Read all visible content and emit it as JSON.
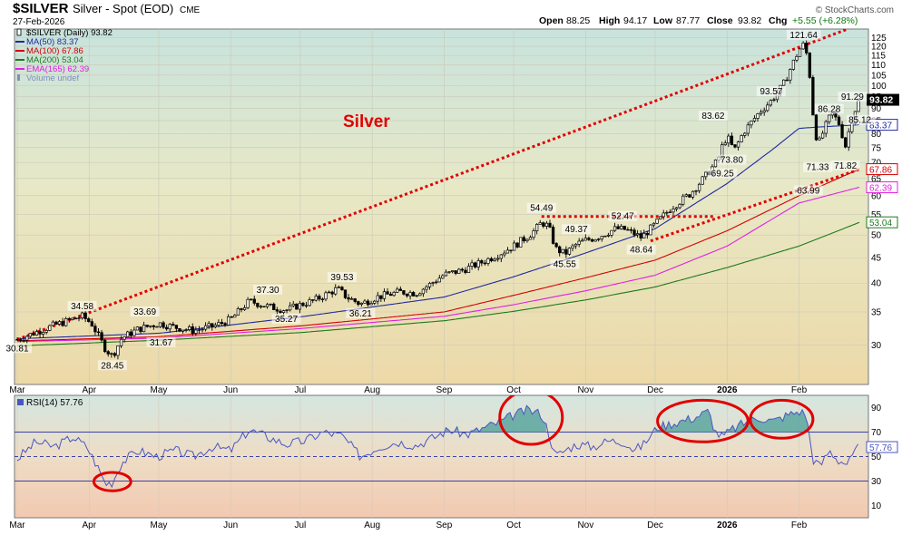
{
  "header": {
    "symbol": "$SILVER",
    "name": "Silver - Spot (EOD)",
    "exchange": "CME",
    "date": "27-Feb-2026",
    "brand": "© StockCharts.com",
    "ohlc": {
      "open_label": "Open",
      "open": "88.25",
      "high_label": "High",
      "high": "94.17",
      "low_label": "Low",
      "low": "87.77",
      "close_label": "Close",
      "close": "93.82",
      "chg_label": "Chg",
      "chg": "+5.55 (+6.28%)"
    }
  },
  "legend": [
    {
      "text": "$SILVER (Daily) 93.82",
      "color": "#000000",
      "marker": "bar"
    },
    {
      "text": "MA(50) 83.37",
      "color": "#1f2a9e",
      "marker": "line"
    },
    {
      "text": "MA(100) 67.86",
      "color": "#d10000",
      "marker": "line"
    },
    {
      "text": "MA(200) 53.04",
      "color": "#1e7a1e",
      "marker": "line"
    },
    {
      "text": "EMA(165) 62.39",
      "color": "#e020e0",
      "marker": "line"
    },
    {
      "text": "Volume undef",
      "color": "#7f8fbf",
      "marker": "vol"
    }
  ],
  "annotation": {
    "text": "Silver",
    "color": "#e00000"
  },
  "colors": {
    "candle": "#000000",
    "ma50": "#1f2a9e",
    "ma100": "#d10000",
    "ma200": "#1e7a1e",
    "ema165": "#e020e0",
    "trend": "#e00000",
    "rsi": "#4a55c0",
    "rsi_fill": "#5aa6a0",
    "circle": "#e00000",
    "label_box": "#ffffff"
  },
  "chart_data": [
    {
      "type": "candlestick",
      "title": "$SILVER Silver - Spot (EOD) CME",
      "x_labels": [
        "Mar",
        "Apr",
        "May",
        "Jun",
        "Jul",
        "Aug",
        "Sep",
        "Oct",
        "Nov",
        "Dec",
        "2026",
        "Feb"
      ],
      "y_scale": "log",
      "ylim": [
        25,
        130
      ],
      "y_ticks": [
        30,
        35,
        40,
        45,
        50,
        55,
        60,
        65,
        70,
        75,
        80,
        85,
        90,
        95,
        100,
        105,
        110,
        115,
        120,
        125
      ],
      "x_range_days": [
        0,
        363
      ],
      "month_days": [
        0,
        31,
        61,
        92,
        122,
        153,
        184,
        214,
        245,
        275,
        306,
        337
      ],
      "closes": [
        [
          0,
          30.8
        ],
        [
          15,
          32.8
        ],
        [
          28,
          34.3
        ],
        [
          32,
          33.2
        ],
        [
          38,
          29.5
        ],
        [
          41,
          28.5
        ],
        [
          45,
          31.0
        ],
        [
          52,
          32.3
        ],
        [
          61,
          33.2
        ],
        [
          68,
          32.6
        ],
        [
          76,
          32.1
        ],
        [
          85,
          32.8
        ],
        [
          92,
          33.8
        ],
        [
          100,
          36.8
        ],
        [
          108,
          35.9
        ],
        [
          116,
          35.3
        ],
        [
          122,
          36.2
        ],
        [
          128,
          36.9
        ],
        [
          138,
          39.0
        ],
        [
          142,
          37.5
        ],
        [
          148,
          36.3
        ],
        [
          155,
          37.5
        ],
        [
          165,
          38.4
        ],
        [
          172,
          38.2
        ],
        [
          178,
          39.8
        ],
        [
          184,
          41.6
        ],
        [
          192,
          42.5
        ],
        [
          200,
          44.0
        ],
        [
          207,
          45.6
        ],
        [
          214,
          47.5
        ],
        [
          222,
          50.5
        ],
        [
          226,
          53.0
        ],
        [
          229,
          52.1
        ],
        [
          232,
          47.0
        ],
        [
          236,
          45.8
        ],
        [
          241,
          47.9
        ],
        [
          245,
          48.8
        ],
        [
          250,
          49.5
        ],
        [
          258,
          51.5
        ],
        [
          262,
          51.3
        ],
        [
          266,
          50.3
        ],
        [
          269,
          49.4
        ],
        [
          275,
          52.6
        ],
        [
          282,
          56.8
        ],
        [
          290,
          60.5
        ],
        [
          297,
          66.0
        ],
        [
          302,
          70.8
        ],
        [
          304,
          75.8
        ],
        [
          306,
          79.0
        ],
        [
          309,
          73.9
        ],
        [
          313,
          80.5
        ],
        [
          320,
          88.5
        ],
        [
          325,
          93.2
        ],
        [
          330,
          100.0
        ],
        [
          334,
          110.0
        ],
        [
          337,
          118.0
        ],
        [
          339,
          121.0
        ],
        [
          341,
          113.0
        ],
        [
          343,
          88.0
        ],
        [
          345,
          75.5
        ],
        [
          348,
          82.0
        ],
        [
          351,
          88.0
        ],
        [
          354,
          84.5
        ],
        [
          357,
          75.6
        ],
        [
          359,
          83.0
        ],
        [
          361,
          89.0
        ],
        [
          363,
          93.8
        ]
      ],
      "series": [
        {
          "name": "MA(50)",
          "color": "#1f2a9e",
          "value_label": "83.37",
          "points": [
            [
              0,
              30.9
            ],
            [
              61,
              31.7
            ],
            [
              122,
              34.2
            ],
            [
              184,
              37.5
            ],
            [
              214,
              41.2
            ],
            [
              245,
              46.0
            ],
            [
              275,
              51.5
            ],
            [
              306,
              63.5
            ],
            [
              325,
              74.0
            ],
            [
              337,
              82.0
            ],
            [
              345,
              82.5
            ],
            [
              363,
              83.4
            ]
          ]
        },
        {
          "name": "MA(100)",
          "color": "#d10000",
          "value_label": "67.86",
          "points": [
            [
              0,
              30.6
            ],
            [
              61,
              31.2
            ],
            [
              122,
              32.8
            ],
            [
              184,
              35.0
            ],
            [
              214,
              37.8
            ],
            [
              245,
              41.0
            ],
            [
              275,
              44.5
            ],
            [
              306,
              51.0
            ],
            [
              337,
              60.0
            ],
            [
              363,
              67.9
            ]
          ]
        },
        {
          "name": "MA(200)",
          "color": "#1e7a1e",
          "value_label": "53.04",
          "points": [
            [
              0,
              29.9
            ],
            [
              61,
              30.7
            ],
            [
              122,
              31.8
            ],
            [
              184,
              33.6
            ],
            [
              214,
              35.1
            ],
            [
              245,
              37.0
            ],
            [
              275,
              39.3
            ],
            [
              306,
              43.0
            ],
            [
              337,
              47.5
            ],
            [
              363,
              53.0
            ]
          ]
        },
        {
          "name": "EMA(165)",
          "color": "#e020e0",
          "value_label": "62.39",
          "points": [
            [
              0,
              30.5
            ],
            [
              61,
              31.0
            ],
            [
              122,
              32.4
            ],
            [
              184,
              34.3
            ],
            [
              214,
              36.2
            ],
            [
              245,
              38.6
            ],
            [
              275,
              41.5
            ],
            [
              306,
              47.5
            ],
            [
              337,
              58.0
            ],
            [
              363,
              62.4
            ]
          ]
        }
      ],
      "trendlines": [
        {
          "name": "upper-channel",
          "from": [
            0,
            30.8
          ],
          "to": [
            358,
            130.0
          ]
        },
        {
          "name": "lower-channel",
          "from": [
            273,
            48.64
          ],
          "to": [
            363,
            67.8
          ]
        },
        {
          "name": "horizontal-resistance",
          "from": [
            226,
            54.49
          ],
          "to": [
            300,
            54.49
          ]
        }
      ],
      "last_value": {
        "value": 93.82,
        "label": "93.82"
      },
      "data_labels": [
        {
          "text": "30.81",
          "day": 0,
          "value": 30.81,
          "pos": "below"
        },
        {
          "text": "34.58",
          "day": 28,
          "value": 34.58,
          "pos": "above"
        },
        {
          "text": "28.45",
          "day": 41,
          "value": 28.45,
          "pos": "below"
        },
        {
          "text": "33.69",
          "day": 55,
          "value": 33.69,
          "pos": "above"
        },
        {
          "text": "31.67",
          "day": 62,
          "value": 31.67,
          "pos": "below"
        },
        {
          "text": "37.30",
          "day": 108,
          "value": 37.3,
          "pos": "above"
        },
        {
          "text": "35.27",
          "day": 116,
          "value": 35.27,
          "pos": "below"
        },
        {
          "text": "39.53",
          "day": 140,
          "value": 39.53,
          "pos": "above"
        },
        {
          "text": "36.21",
          "day": 148,
          "value": 36.21,
          "pos": "below"
        },
        {
          "text": "54.49",
          "day": 226,
          "value": 54.49,
          "pos": "above"
        },
        {
          "text": "49.37",
          "day": 241,
          "value": 49.37,
          "pos": "above"
        },
        {
          "text": "45.55",
          "day": 236,
          "value": 45.55,
          "pos": "below"
        },
        {
          "text": "52.47",
          "day": 261,
          "value": 52.47,
          "pos": "above"
        },
        {
          "text": "48.64",
          "day": 269,
          "value": 48.64,
          "pos": "below"
        },
        {
          "text": "83.62",
          "day": 300,
          "value": 83.62,
          "pos": "above"
        },
        {
          "text": "73.80",
          "day": 308,
          "value": 73.8,
          "pos": "below"
        },
        {
          "text": "69.25",
          "day": 304,
          "value": 69.25,
          "pos": "below"
        },
        {
          "text": "93.57",
          "day": 325,
          "value": 93.57,
          "pos": "above"
        },
        {
          "text": "121.64",
          "day": 339,
          "value": 121.64,
          "pos": "above"
        },
        {
          "text": "86.28",
          "day": 350,
          "value": 86.28,
          "pos": "above"
        },
        {
          "text": "71.33",
          "day": 345,
          "value": 71.33,
          "pos": "below"
        },
        {
          "text": "85.12",
          "day": 356,
          "value": 85.12,
          "pos": "right"
        },
        {
          "text": "71.82",
          "day": 357,
          "value": 71.82,
          "pos": "below"
        },
        {
          "text": "91.29",
          "day": 360,
          "value": 91.29,
          "pos": "above"
        },
        {
          "text": "63.99",
          "day": 341,
          "value": 63.99,
          "pos": "below"
        }
      ],
      "right_value_boxes": [
        {
          "text": "83.37",
          "value": 83.37,
          "color": "#1f2a9e"
        },
        {
          "text": "67.86",
          "value": 67.86,
          "color": "#d10000"
        },
        {
          "text": "62.39",
          "value": 62.39,
          "color": "#e020e0"
        },
        {
          "text": "53.04",
          "value": 53.04,
          "color": "#1e7a1e"
        }
      ]
    },
    {
      "type": "line",
      "title": "RSI(14) 57.76",
      "label": "RSI(14) 57.76",
      "ylim": [
        0,
        100
      ],
      "y_ticks": [
        10,
        30,
        50,
        70,
        90
      ],
      "levels": [
        30,
        50,
        70
      ],
      "x_labels": [
        "Mar",
        "Apr",
        "May",
        "Jun",
        "Jul",
        "Aug",
        "Sep",
        "Oct",
        "Nov",
        "Dec",
        "2026",
        "Feb"
      ],
      "last_value": {
        "value": 57.76,
        "label": "57.76"
      },
      "values": [
        [
          0,
          48
        ],
        [
          8,
          62
        ],
        [
          16,
          58
        ],
        [
          24,
          66
        ],
        [
          30,
          58
        ],
        [
          34,
          44
        ],
        [
          38,
          28
        ],
        [
          41,
          29
        ],
        [
          45,
          45
        ],
        [
          52,
          55
        ],
        [
          60,
          50
        ],
        [
          68,
          55
        ],
        [
          76,
          50
        ],
        [
          84,
          58
        ],
        [
          92,
          55
        ],
        [
          100,
          72
        ],
        [
          108,
          66
        ],
        [
          116,
          60
        ],
        [
          124,
          63
        ],
        [
          132,
          70
        ],
        [
          140,
          67
        ],
        [
          148,
          50
        ],
        [
          156,
          58
        ],
        [
          164,
          62
        ],
        [
          172,
          59
        ],
        [
          180,
          66
        ],
        [
          186,
          72
        ],
        [
          194,
          68
        ],
        [
          202,
          74
        ],
        [
          208,
          78
        ],
        [
          214,
          84
        ],
        [
          220,
          88
        ],
        [
          226,
          85
        ],
        [
          229,
          70
        ],
        [
          232,
          50
        ],
        [
          236,
          55
        ],
        [
          241,
          60
        ],
        [
          248,
          58
        ],
        [
          255,
          63
        ],
        [
          262,
          62
        ],
        [
          266,
          55
        ],
        [
          270,
          60
        ],
        [
          276,
          74
        ],
        [
          284,
          78
        ],
        [
          292,
          82
        ],
        [
          298,
          87
        ],
        [
          301,
          70
        ],
        [
          304,
          66
        ],
        [
          308,
          72
        ],
        [
          314,
          78
        ],
        [
          320,
          82
        ],
        [
          326,
          79
        ],
        [
          332,
          84
        ],
        [
          337,
          87
        ],
        [
          340,
          85
        ],
        [
          343,
          48
        ],
        [
          346,
          42
        ],
        [
          350,
          55
        ],
        [
          354,
          47
        ],
        [
          358,
          44
        ],
        [
          361,
          53
        ],
        [
          363,
          58
        ]
      ],
      "circles": [
        {
          "name": "oversold-april",
          "from_day": 33,
          "to_day": 49,
          "level_low": 22,
          "level_high": 37
        },
        {
          "name": "overbought-oct",
          "from_day": 208,
          "to_day": 235,
          "level_low": 60,
          "level_high": 104
        },
        {
          "name": "overbought-dec",
          "from_day": 276,
          "to_day": 315,
          "level_low": 62,
          "level_high": 96
        },
        {
          "name": "overbought-jan",
          "from_day": 316,
          "to_day": 343,
          "level_low": 65,
          "level_high": 96
        }
      ]
    }
  ]
}
